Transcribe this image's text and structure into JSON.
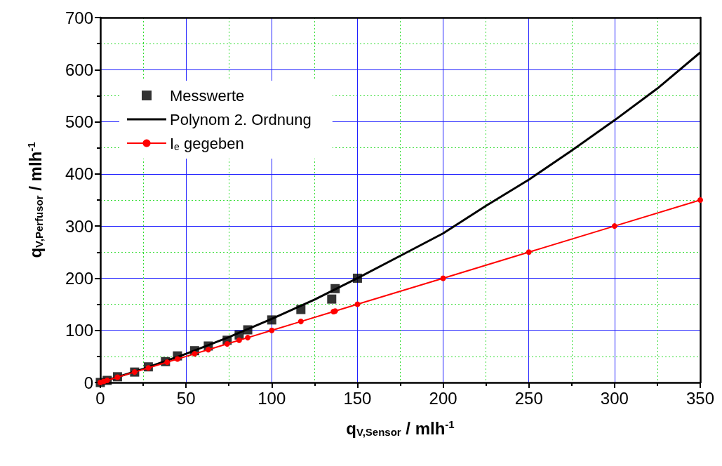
{
  "chart_data": {
    "type": "line",
    "xlabel": "q$_{V,Sensor}$ / mlh$^{-1}$",
    "ylabel": "q$_{V,Perfusor}$ / mlh$^{-1}$",
    "xlim": [
      0,
      350
    ],
    "xticks": [
      0,
      {
        "value": 25,
        "label": null
      },
      50,
      {
        "value": 75,
        "label": null
      },
      100,
      {
        "value": 125,
        "label": null
      },
      150,
      {
        "value": 175,
        "label": null
      },
      200,
      {
        "value": 225,
        "label": null
      },
      250,
      {
        "value": 275,
        "label": null
      },
      300,
      {
        "value": 325,
        "label": null
      },
      350
    ],
    "ylim": [
      0,
      700
    ],
    "yticks": [
      0,
      {
        "value": 50,
        "label": null
      },
      100,
      {
        "value": 150,
        "label": null
      },
      200,
      {
        "value": 250,
        "label": null
      },
      300,
      {
        "value": 350,
        "label": null
      },
      400,
      {
        "value": 450,
        "label": null
      },
      500,
      {
        "value": 550,
        "label": null
      },
      600,
      {
        "value": 650,
        "label": null
      },
      700
    ],
    "grid": true,
    "legend": "top left",
    "series": [
      {
        "name": "Messwerte",
        "type": "scatter",
        "marker": "square",
        "color": "#000000",
        "x": [
          0,
          4,
          10,
          20,
          28,
          38,
          45,
          55,
          63,
          74,
          81,
          86,
          100,
          117,
          135,
          137,
          150
        ],
        "values": [
          0,
          4,
          11,
          20,
          30,
          40,
          51,
          61,
          70,
          81,
          91,
          101,
          120,
          140,
          160,
          180,
          200
        ]
      },
      {
        "name": "Polynom 2. Ordnung",
        "type": "line",
        "marker": "none",
        "color": "#000000",
        "x": [
          0,
          25,
          50,
          75,
          100,
          125,
          150,
          175,
          200,
          225,
          250,
          275,
          300,
          325,
          350
        ],
        "values": [
          0,
          26,
          55,
          87,
          122,
          159,
          200,
          243,
          286,
          339,
          389,
          445,
          503,
          564,
          633
        ]
      },
      {
        "name": "I$_{e}$ gegeben",
        "type": "line",
        "marker": "circle",
        "color": "#ff0000",
        "x": [
          0,
          2,
          4,
          10,
          20,
          28,
          39,
          45,
          55,
          63,
          74,
          81,
          86,
          100,
          117,
          136,
          137,
          150,
          200,
          250,
          300,
          350
        ],
        "values": [
          0,
          2,
          4,
          10,
          20,
          28,
          39,
          45,
          55,
          63,
          74,
          81,
          86,
          100,
          117,
          136,
          137,
          150,
          200,
          250,
          300,
          350
        ]
      }
    ]
  }
}
